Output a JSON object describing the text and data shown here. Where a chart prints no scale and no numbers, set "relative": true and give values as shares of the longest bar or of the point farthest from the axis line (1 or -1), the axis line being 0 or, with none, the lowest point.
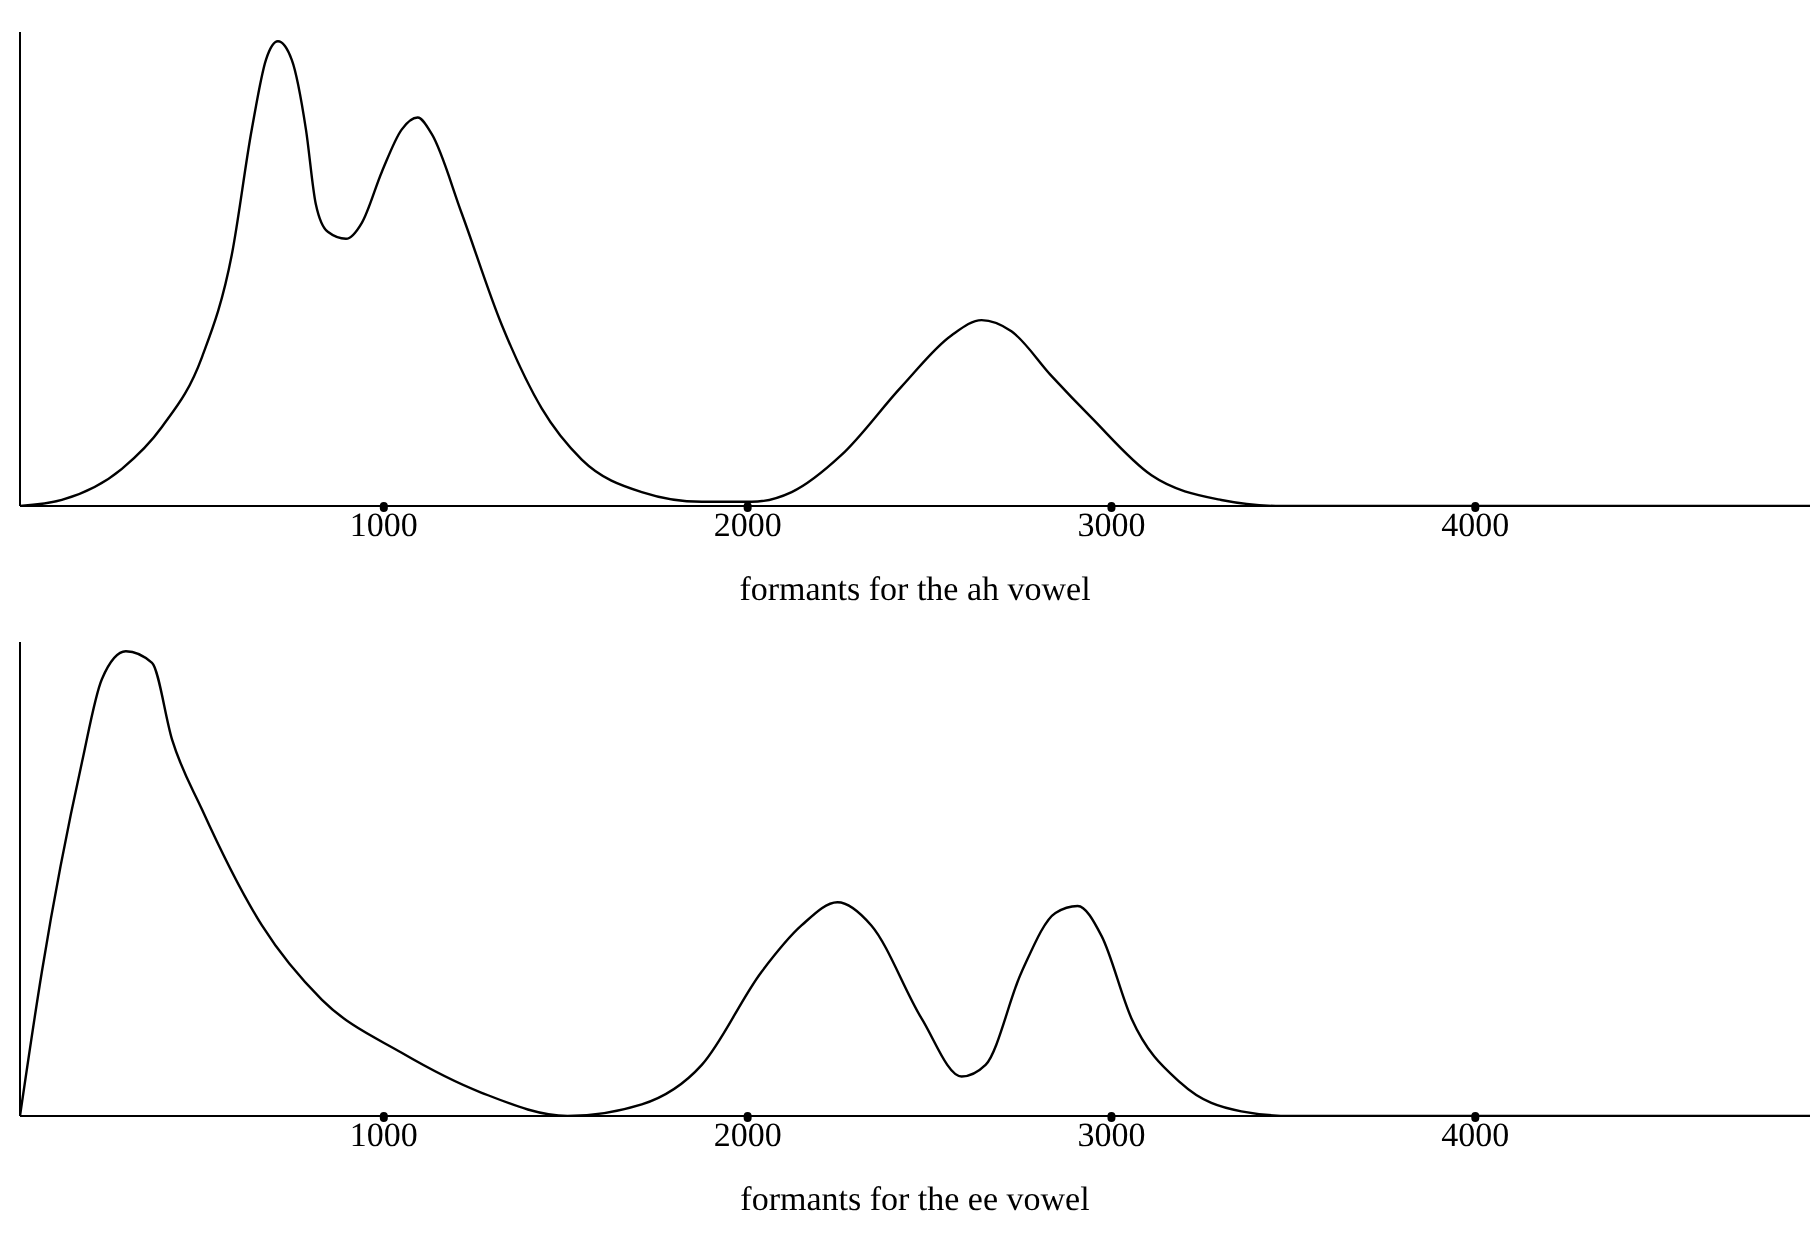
{
  "chart_data": [
    {
      "type": "line",
      "xlabel": "formants for the ah vowel",
      "relative": true,
      "xlim": [
        0,
        4920
      ],
      "xticks": [
        1000,
        2000,
        3000,
        4000
      ],
      "grid": false,
      "legend": false,
      "marker": "none",
      "line_style": "solid",
      "x": [
        0,
        115,
        280,
        390,
        500,
        582,
        637,
        676,
        709,
        747,
        786,
        813,
        846,
        896,
        940,
        995,
        1049,
        1093,
        1132,
        1214,
        1324,
        1434,
        1544,
        1709,
        1874,
        2011,
        2121,
        2258,
        2423,
        2560,
        2643,
        2725,
        2835,
        2945,
        3110,
        3302,
        3467,
        4920
      ],
      "series": [
        {
          "color": "#000000",
          "values": [
            0,
            0.013,
            0.08,
            0.17,
            0.32,
            0.54,
            0.81,
            0.96,
            1,
            0.96,
            0.81,
            0.65,
            0.59,
            0.575,
            0.61,
            0.72,
            0.81,
            0.836,
            0.8,
            0.63,
            0.39,
            0.21,
            0.1,
            0.03,
            0.009,
            0.009,
            0.03,
            0.11,
            0.257,
            0.367,
            0.4,
            0.376,
            0.28,
            0.19,
            0.066,
            0.013,
            0,
            0
          ]
        }
      ]
    },
    {
      "type": "line",
      "xlabel": "formants for the ee vowel",
      "relative": true,
      "xlim": [
        0,
        4920
      ],
      "xticks": [
        1000,
        2000,
        3000,
        4000
      ],
      "grid": false,
      "legend": false,
      "marker": "none",
      "line_style": "solid",
      "x": [
        0,
        60,
        170,
        225,
        291,
        363,
        418,
        500,
        665,
        830,
        1049,
        1269,
        1505,
        1709,
        1874,
        2038,
        2148,
        2247,
        2340,
        2478,
        2588,
        2654,
        2753,
        2846,
        2907,
        2973,
        3055,
        3192,
        3357,
        3495,
        4920
      ],
      "series": [
        {
          "color": "#000000",
          "values": [
            0,
            0.31,
            0.76,
            0.94,
            1,
            0.975,
            0.81,
            0.66,
            0.41,
            0.25,
            0.136,
            0.05,
            0,
            0.025,
            0.11,
            0.31,
            0.41,
            0.46,
            0.41,
            0.21,
            0.085,
            0.11,
            0.31,
            0.437,
            0.452,
            0.387,
            0.21,
            0.07,
            0.01,
            0,
            0
          ]
        }
      ]
    }
  ]
}
